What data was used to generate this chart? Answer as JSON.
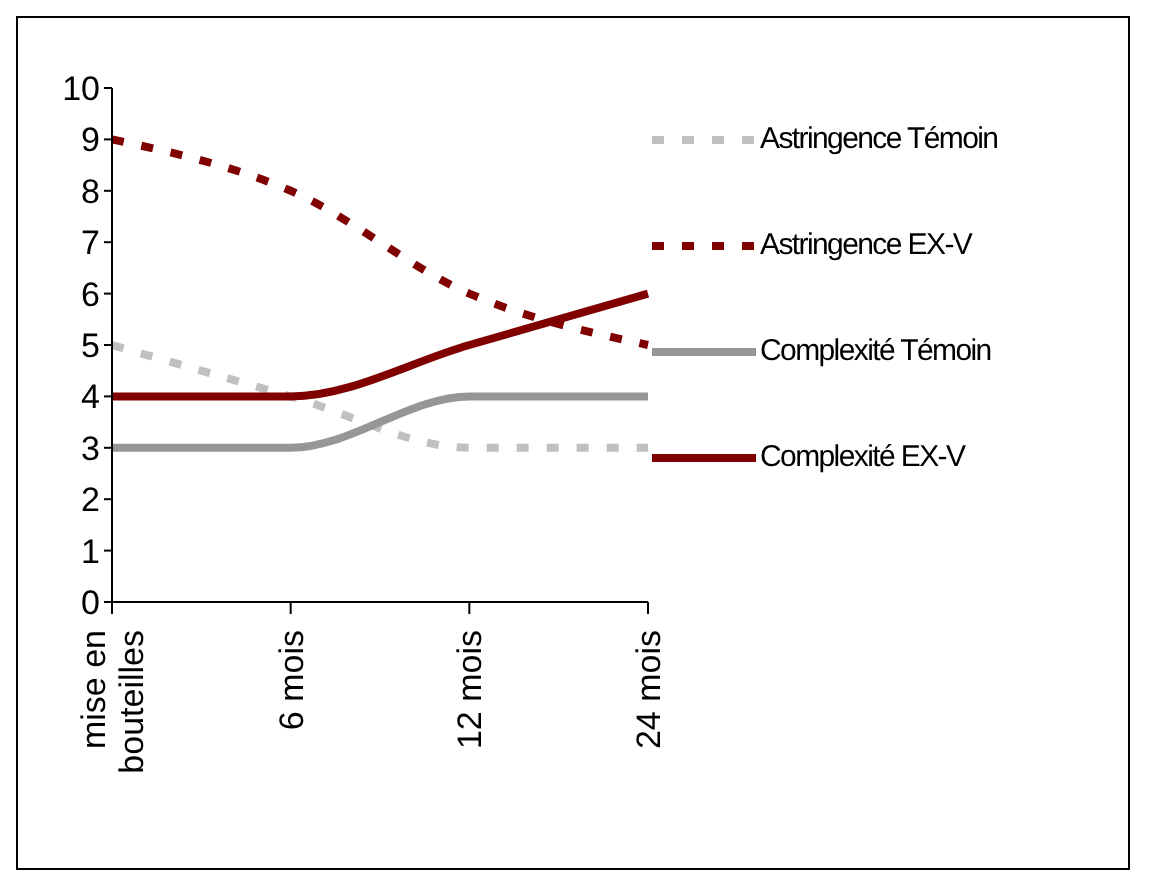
{
  "chart_data": {
    "type": "line",
    "categories": [
      "mise en bouteilles",
      "6 mois",
      "12 mois",
      "24 mois"
    ],
    "series": [
      {
        "name": "Astringence Témoin",
        "color": "#c0c0c0",
        "line_style": "dotted",
        "values": [
          5,
          4,
          3,
          3
        ]
      },
      {
        "name": "Astringence EX-V",
        "color": "#800000",
        "line_style": "dotted",
        "values": [
          9,
          8,
          6,
          5
        ]
      },
      {
        "name": "Complexité Témoin",
        "color": "#969696",
        "line_style": "solid",
        "values": [
          3,
          3,
          4,
          4
        ]
      },
      {
        "name": "Complexité EX-V",
        "color": "#800000",
        "line_style": "solid",
        "values": [
          4,
          4,
          5,
          6
        ]
      }
    ],
    "ylim": [
      0,
      10
    ],
    "yticks": [
      0,
      1,
      2,
      3,
      4,
      5,
      6,
      7,
      8,
      9,
      10
    ],
    "grid": false,
    "legend": "right",
    "marker": "none"
  }
}
